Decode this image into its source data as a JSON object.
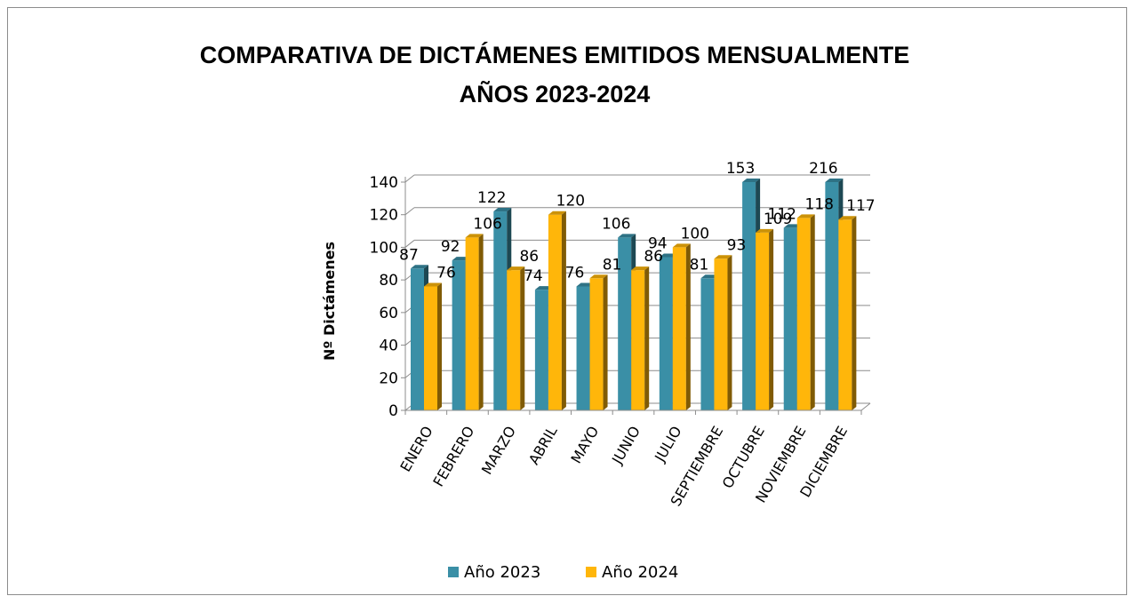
{
  "chart_data": {
    "type": "bar",
    "style": "3d-clustered-column",
    "title": [
      "COMPARATIVA DE DICTÁMENES EMITIDOS MENSUALMENTE",
      "AÑOS 2023-2024"
    ],
    "xlabel": "",
    "ylabel": "Nº Dictámenes",
    "ylim": [
      0,
      140
    ],
    "yticks": [
      0,
      20,
      40,
      60,
      80,
      100,
      120,
      140
    ],
    "grid": true,
    "legend_position": "bottom",
    "categories": [
      "ENERO",
      "FEBRERO",
      "MARZO",
      "ABRIL",
      "MAYO",
      "JUNIO",
      "JULIO",
      "SEPTIEMBRE",
      "OCTUBRE",
      "NOVIEMBRE",
      "DICIEMBRE"
    ],
    "series": [
      {
        "name": "Año 2023",
        "color": "#3a8fa6",
        "values": [
          87,
          92,
          122,
          74,
          76,
          106,
          94,
          81,
          153,
          112,
          216
        ]
      },
      {
        "name": "Año 2024",
        "color": "#ffb60a",
        "values": [
          76,
          106,
          86,
          120,
          81,
          86,
          100,
          93,
          109,
          118,
          117
        ]
      }
    ]
  }
}
